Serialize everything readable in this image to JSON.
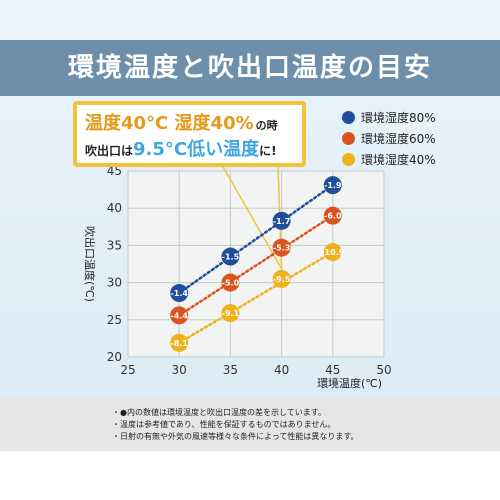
{
  "header": {
    "title": "環境温度と吹出口温度の目安"
  },
  "callout": {
    "line1_a": "温度40°C",
    "line1_b": "湿度40%",
    "line1_c": "の時",
    "line2_a": "吹出口は",
    "line2_b": "9.5°C低い温度",
    "line2_c": "に!"
  },
  "notes": [
    "・●内の数値は環境温度と吹出口温度の差を示しています。",
    "・温度は参考値であり、性能を保証するものではありません。",
    "・日射の有無や外気の風速等様々な条件によって性能は異なります。"
  ],
  "chart_data": {
    "type": "scatter",
    "xlabel": "環境温度(℃)",
    "ylabel": "吹出口温度(℃)",
    "xlim": [
      25,
      50
    ],
    "ylim": [
      20,
      45
    ],
    "xticks": [
      25,
      30,
      35,
      40,
      45,
      50
    ],
    "yticks": [
      20,
      25,
      30,
      35,
      40,
      45
    ],
    "grid": true,
    "legend_position": "top-right",
    "series": [
      {
        "name": "環境湿度80%",
        "color": "#1f4e9b",
        "points": [
          {
            "x": 30,
            "y": 28.6,
            "label": "-1.4"
          },
          {
            "x": 35,
            "y": 33.5,
            "label": "-1.5"
          },
          {
            "x": 40,
            "y": 38.3,
            "label": "-1.7"
          },
          {
            "x": 45,
            "y": 43.1,
            "label": "-1.9"
          }
        ]
      },
      {
        "name": "環境湿度60%",
        "color": "#d9541e",
        "points": [
          {
            "x": 30,
            "y": 25.6,
            "label": "-4.4"
          },
          {
            "x": 35,
            "y": 30.0,
            "label": "-5.0"
          },
          {
            "x": 40,
            "y": 34.7,
            "label": "-5.3"
          },
          {
            "x": 45,
            "y": 39.0,
            "label": "-6.0"
          }
        ]
      },
      {
        "name": "環境湿度40%",
        "color": "#f0b21c",
        "points": [
          {
            "x": 30,
            "y": 21.9,
            "label": "-8.1"
          },
          {
            "x": 35,
            "y": 25.9,
            "label": "-9.1"
          },
          {
            "x": 40,
            "y": 30.5,
            "label": "-9.5"
          },
          {
            "x": 45,
            "y": 34.1,
            "label": "-10.9"
          }
        ]
      }
    ]
  }
}
